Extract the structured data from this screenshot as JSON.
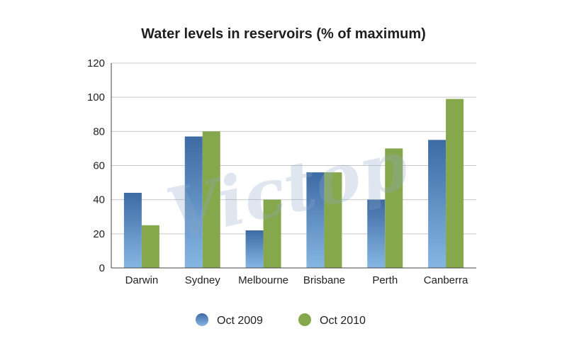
{
  "chart_data": {
    "type": "bar",
    "title": "Water levels in reservoirs (% of maximum)",
    "xlabel": "",
    "ylabel": "",
    "categories": [
      "Darwin",
      "Sydney",
      "Melbourne",
      "Brisbane",
      "Perth",
      "Canberra"
    ],
    "series": [
      {
        "name": "Oct 2009",
        "values": [
          44,
          77,
          22,
          56,
          40,
          75
        ]
      },
      {
        "name": "Oct 2010",
        "values": [
          25,
          80,
          40,
          56,
          70,
          99
        ]
      }
    ],
    "ylim": [
      0,
      120
    ],
    "yticks": [
      "0",
      "20",
      "40",
      "60",
      "80",
      "100",
      "120"
    ],
    "grid": true,
    "legend_position": "bottom",
    "colors": {
      "series_2009_top": "#3d6aa3",
      "series_2009_bottom": "#86b6e3",
      "series_2010": "#86a84c",
      "grid": "#c8c8c8",
      "axis": "#444444"
    }
  },
  "watermark": "Victop"
}
